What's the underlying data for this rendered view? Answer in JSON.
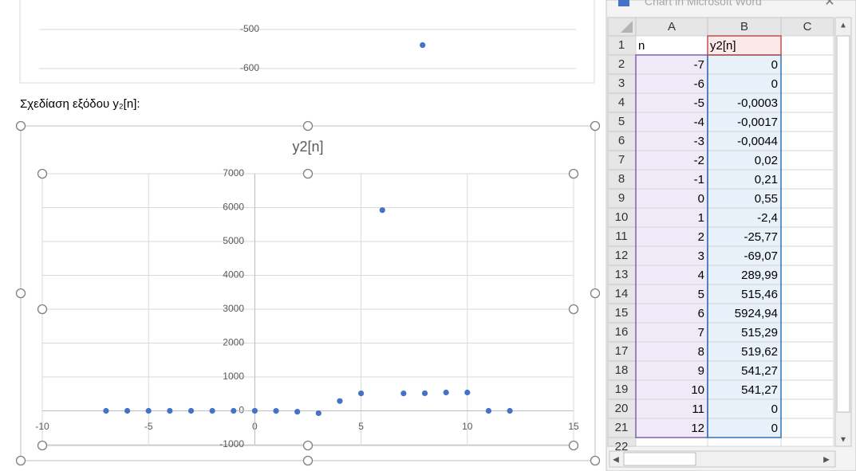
{
  "caption": "Σχεδίαση εξόδου y₂[n]:",
  "chart_data": [
    {
      "type": "scatter",
      "x": [
        15
      ],
      "values": [
        -540
      ],
      "color": "#4472c4",
      "xlim": [
        -10,
        25
      ],
      "ylim": [
        -600,
        -500
      ],
      "yticks": [
        -600,
        -500
      ],
      "grid": true
    },
    {
      "type": "scatter",
      "title": "y2[n]",
      "x": [
        -7,
        -6,
        -5,
        -4,
        -3,
        -2,
        -1,
        0,
        1,
        2,
        3,
        4,
        5,
        6,
        7,
        8,
        9,
        10,
        11,
        12
      ],
      "values": [
        0,
        0,
        -0.0003,
        -0.0017,
        -0.0044,
        0.02,
        0.21,
        0.55,
        -2.4,
        -25.77,
        -69.07,
        289.99,
        515.46,
        5924.94,
        515.29,
        519.62,
        541.27,
        541.27,
        0,
        0
      ],
      "color": "#4472c4",
      "xlim": [
        -10,
        15
      ],
      "xticks": [
        -10,
        -5,
        0,
        5,
        10,
        15
      ],
      "ylim": [
        -1000,
        7000
      ],
      "yticks": [
        -1000,
        0,
        1000,
        2000,
        3000,
        4000,
        5000,
        6000,
        7000
      ],
      "grid": true
    }
  ],
  "spreadsheet": {
    "title": "Chart in Microsoft Word",
    "columns": [
      "A",
      "B",
      "C"
    ],
    "row_numbers": [
      "1",
      "2",
      "3",
      "4",
      "5",
      "6",
      "7",
      "8",
      "9",
      "10",
      "11",
      "12",
      "13",
      "14",
      "15",
      "16",
      "17",
      "18",
      "19",
      "20",
      "21",
      "22"
    ],
    "rows": [
      [
        "n",
        "y2[n]"
      ],
      [
        "-7",
        "0"
      ],
      [
        "-6",
        "0"
      ],
      [
        "-5",
        "-0,0003"
      ],
      [
        "-4",
        "-0,0017"
      ],
      [
        "-3",
        "-0,0044"
      ],
      [
        "-2",
        "0,02"
      ],
      [
        "-1",
        "0,21"
      ],
      [
        "0",
        "0,55"
      ],
      [
        "1",
        "-2,4"
      ],
      [
        "2",
        "-25,77"
      ],
      [
        "3",
        "-69,07"
      ],
      [
        "4",
        "289,99"
      ],
      [
        "5",
        "515,46"
      ],
      [
        "6",
        "5924,94"
      ],
      [
        "7",
        "515,29"
      ],
      [
        "8",
        "519,62"
      ],
      [
        "9",
        "541,27"
      ],
      [
        "10",
        "541,27"
      ],
      [
        "11",
        "0"
      ],
      [
        "12",
        "0"
      ]
    ]
  }
}
